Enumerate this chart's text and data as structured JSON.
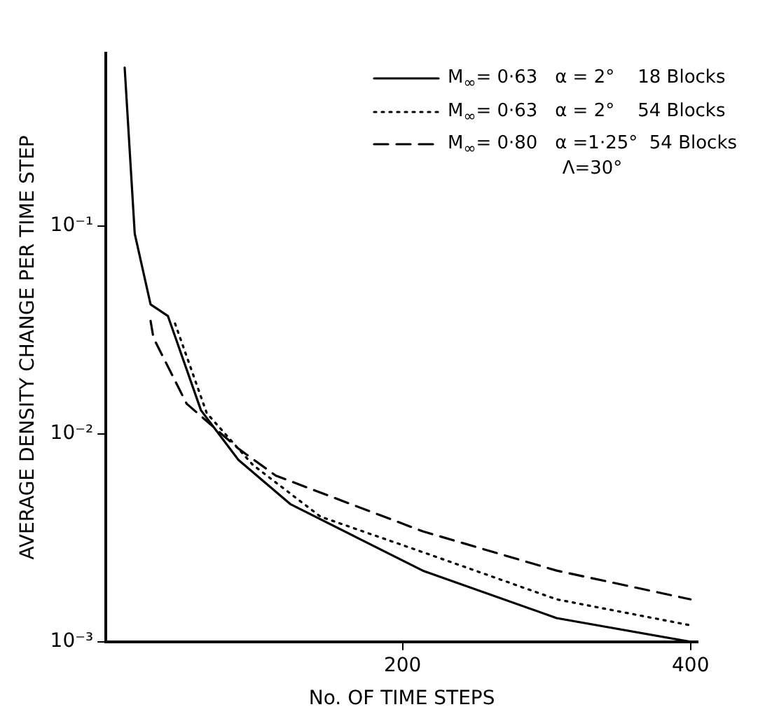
{
  "chart_data": {
    "type": "line",
    "xlabel": "No. OF TIME STEPS",
    "ylabel": "AVERAGE DENSITY CHANGE PER TIME STEP",
    "log": "y",
    "xlim": [
      -6,
      405
    ],
    "ylim": [
      0.001,
      0.68
    ],
    "xticks": [
      200,
      400
    ],
    "yticks": [
      {
        "value": 0.001,
        "label": "10⁻³"
      },
      {
        "value": 0.01,
        "label": "10⁻²"
      },
      {
        "value": 0.1,
        "label": "10⁻¹"
      }
    ],
    "grid": false,
    "legend": "top right",
    "marker": "none",
    "series": [
      {
        "name": "M$_{∞}$= 0·63   α = 2°    18 Blocks",
        "color": "#000000",
        "line_style": "solid",
        "x": [
          7,
          14,
          25,
          37,
          60,
          86,
          122,
          214,
          307,
          400
        ],
        "values": [
          0.58,
          0.092,
          0.042,
          0.037,
          0.013,
          0.0075,
          0.0046,
          0.0022,
          0.0013,
          0.001
        ]
      },
      {
        "name": "M$_{∞}$= 0·63   α = 2°    54 Blocks",
        "color": "#000000",
        "line_style": "dotted",
        "x": [
          42,
          64,
          96,
          143,
          214,
          307,
          400
        ],
        "values": [
          0.034,
          0.0126,
          0.0071,
          0.004,
          0.0027,
          0.0016,
          0.0012
        ]
      },
      {
        "name": "M$_{∞}$= 0·80   α =1·25°  54 Blocks\nΛ=30°",
        "color": "#000000",
        "line_style": "dashed",
        "x": [
          25,
          27,
          50,
          86,
          112,
          214,
          307,
          400
        ],
        "values": [
          0.035,
          0.029,
          0.014,
          0.0085,
          0.0063,
          0.0034,
          0.0022,
          0.0016
        ]
      }
    ]
  }
}
